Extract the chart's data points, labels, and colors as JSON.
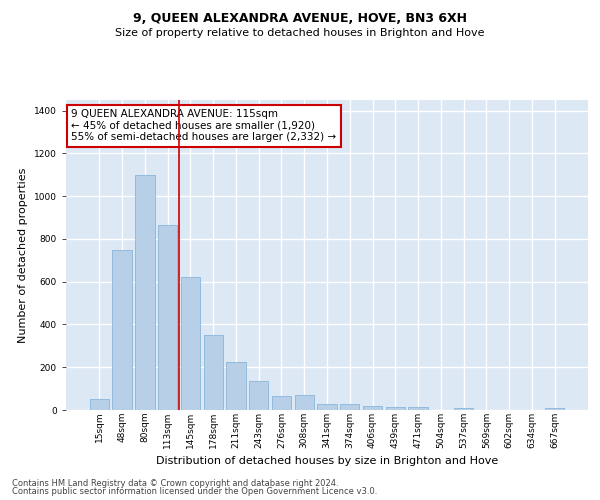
{
  "title": "9, QUEEN ALEXANDRA AVENUE, HOVE, BN3 6XH",
  "subtitle": "Size of property relative to detached houses in Brighton and Hove",
  "xlabel": "Distribution of detached houses by size in Brighton and Hove",
  "ylabel": "Number of detached properties",
  "categories": [
    "15sqm",
    "48sqm",
    "80sqm",
    "113sqm",
    "145sqm",
    "178sqm",
    "211sqm",
    "243sqm",
    "276sqm",
    "308sqm",
    "341sqm",
    "374sqm",
    "406sqm",
    "439sqm",
    "471sqm",
    "504sqm",
    "537sqm",
    "569sqm",
    "602sqm",
    "634sqm",
    "667sqm"
  ],
  "values": [
    50,
    750,
    1100,
    865,
    620,
    350,
    225,
    135,
    65,
    70,
    30,
    30,
    20,
    15,
    15,
    0,
    10,
    0,
    0,
    0,
    10
  ],
  "bar_color": "#b8cfe8",
  "bar_edge_color": "#7aaed6",
  "bar_edge_width": 0.5,
  "highlight_index": 3,
  "red_line_color": "#cc0000",
  "annotation_text": "9 QUEEN ALEXANDRA AVENUE: 115sqm\n← 45% of detached houses are smaller (1,920)\n55% of semi-detached houses are larger (2,332) →",
  "annotation_box_color": "#ffffff",
  "annotation_box_edge": "#cc0000",
  "ylim": [
    0,
    1450
  ],
  "yticks": [
    0,
    200,
    400,
    600,
    800,
    1000,
    1200,
    1400
  ],
  "background_color": "#dde8f5",
  "grid_color": "#ffffff",
  "footer1": "Contains HM Land Registry data © Crown copyright and database right 2024.",
  "footer2": "Contains public sector information licensed under the Open Government Licence v3.0.",
  "title_fontsize": 9,
  "subtitle_fontsize": 8,
  "xlabel_fontsize": 8,
  "ylabel_fontsize": 8,
  "tick_fontsize": 6.5,
  "annotation_fontsize": 7.5,
  "footer_fontsize": 6
}
